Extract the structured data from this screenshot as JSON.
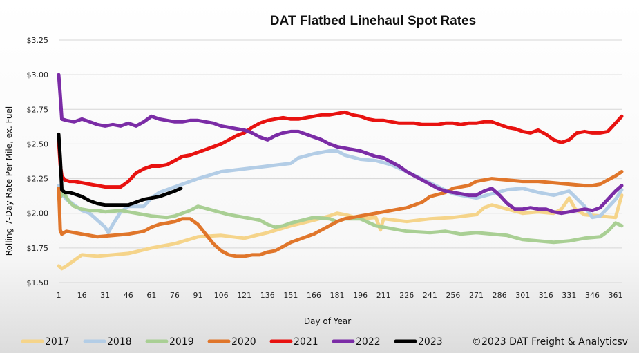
{
  "chart_data": {
    "type": "line",
    "title": "DAT Flatbed Linehaul Spot Rates",
    "xlabel": "Day of Year",
    "ylabel": "Rolling 7-Day Rate Per Mile, ex. Fuel",
    "xlim": [
      1,
      365
    ],
    "ylim": [
      1.5,
      3.25
    ],
    "x_ticks": [
      1,
      16,
      31,
      46,
      61,
      76,
      91,
      106,
      121,
      136,
      151,
      166,
      181,
      196,
      211,
      226,
      241,
      256,
      271,
      286,
      301,
      316,
      331,
      346,
      361
    ],
    "y_ticks": [
      {
        "value": 1.5,
        "label": "$1.50"
      },
      {
        "value": 1.75,
        "label": "$1.75"
      },
      {
        "value": 2.0,
        "label": "$2.00"
      },
      {
        "value": 2.25,
        "label": "$2.25"
      },
      {
        "value": 2.5,
        "label": "$2.50"
      },
      {
        "value": 2.75,
        "label": "$2.75"
      },
      {
        "value": 3.0,
        "label": "$3.00"
      },
      {
        "value": 3.25,
        "label": "$3.25"
      }
    ],
    "grid": true,
    "legend_position": "bottom",
    "annotation": "©2023 DAT Freight & Analyticsv",
    "series": [
      {
        "name": "2017",
        "color": "#f5d48a",
        "x": [
          1,
          3,
          6,
          11,
          16,
          26,
          36,
          46,
          61,
          76,
          91,
          106,
          121,
          136,
          151,
          166,
          176,
          181,
          186,
          196,
          206,
          209,
          211,
          226,
          241,
          256,
          271,
          276,
          281,
          291,
          301,
          311,
          321,
          326,
          331,
          335,
          341,
          351,
          361,
          365
        ],
        "y": [
          1.62,
          1.6,
          1.62,
          1.66,
          1.7,
          1.69,
          1.7,
          1.71,
          1.75,
          1.78,
          1.83,
          1.84,
          1.82,
          1.86,
          1.91,
          1.95,
          1.98,
          2.0,
          1.99,
          1.96,
          1.97,
          1.88,
          1.96,
          1.94,
          1.96,
          1.97,
          1.99,
          2.04,
          2.06,
          2.03,
          2.0,
          2.01,
          2.0,
          2.03,
          2.11,
          2.03,
          1.99,
          1.98,
          1.97,
          2.13
        ]
      },
      {
        "name": "2018",
        "color": "#b3cde6",
        "x": [
          1,
          3,
          6,
          11,
          16,
          21,
          26,
          31,
          33,
          36,
          41,
          46,
          56,
          61,
          66,
          76,
          91,
          106,
          121,
          136,
          151,
          156,
          166,
          176,
          181,
          186,
          196,
          206,
          216,
          226,
          241,
          256,
          271,
          281,
          291,
          301,
          311,
          321,
          331,
          341,
          346,
          351,
          361,
          365
        ],
        "y": [
          2.2,
          2.14,
          2.1,
          2.06,
          2.02,
          2.0,
          1.95,
          1.9,
          1.86,
          1.92,
          2.01,
          2.05,
          2.05,
          2.11,
          2.15,
          2.19,
          2.25,
          2.3,
          2.32,
          2.34,
          2.36,
          2.4,
          2.43,
          2.45,
          2.45,
          2.42,
          2.39,
          2.38,
          2.35,
          2.3,
          2.22,
          2.14,
          2.11,
          2.14,
          2.17,
          2.18,
          2.15,
          2.13,
          2.16,
          2.05,
          1.97,
          1.98,
          2.1,
          2.17
        ]
      },
      {
        "name": "2019",
        "color": "#a9cf94",
        "x": [
          1,
          4,
          8,
          11,
          16,
          21,
          26,
          31,
          41,
          51,
          61,
          71,
          76,
          81,
          86,
          91,
          101,
          111,
          121,
          131,
          136,
          141,
          146,
          151,
          166,
          176,
          181,
          186,
          196,
          206,
          216,
          226,
          241,
          251,
          261,
          271,
          281,
          291,
          301,
          311,
          321,
          331,
          341,
          351,
          356,
          361,
          365
        ],
        "y": [
          2.1,
          2.15,
          2.08,
          2.05,
          2.03,
          2.02,
          2.02,
          2.01,
          2.02,
          2.0,
          1.98,
          1.97,
          1.98,
          2.0,
          2.02,
          2.05,
          2.02,
          1.99,
          1.97,
          1.95,
          1.92,
          1.9,
          1.91,
          1.93,
          1.97,
          1.96,
          1.94,
          1.96,
          1.96,
          1.91,
          1.89,
          1.87,
          1.86,
          1.87,
          1.85,
          1.86,
          1.85,
          1.84,
          1.81,
          1.8,
          1.79,
          1.8,
          1.82,
          1.83,
          1.87,
          1.93,
          1.91
        ]
      },
      {
        "name": "2020",
        "color": "#e0762b",
        "x": [
          1,
          2,
          3,
          6,
          11,
          16,
          26,
          36,
          46,
          56,
          61,
          66,
          71,
          76,
          81,
          86,
          91,
          96,
          101,
          106,
          111,
          116,
          121,
          126,
          131,
          136,
          141,
          146,
          151,
          156,
          166,
          171,
          176,
          181,
          186,
          196,
          206,
          216,
          226,
          236,
          241,
          251,
          256,
          266,
          271,
          276,
          281,
          291,
          301,
          311,
          321,
          331,
          341,
          346,
          351,
          356,
          361,
          365
        ],
        "y": [
          2.18,
          1.88,
          1.85,
          1.87,
          1.86,
          1.85,
          1.83,
          1.84,
          1.85,
          1.87,
          1.9,
          1.92,
          1.93,
          1.94,
          1.96,
          1.96,
          1.92,
          1.85,
          1.78,
          1.73,
          1.7,
          1.69,
          1.69,
          1.7,
          1.7,
          1.72,
          1.73,
          1.76,
          1.79,
          1.81,
          1.85,
          1.88,
          1.91,
          1.94,
          1.96,
          1.98,
          2.0,
          2.02,
          2.04,
          2.08,
          2.12,
          2.15,
          2.18,
          2.2,
          2.23,
          2.24,
          2.25,
          2.24,
          2.23,
          2.23,
          2.22,
          2.21,
          2.2,
          2.2,
          2.21,
          2.24,
          2.27,
          2.3
        ]
      },
      {
        "name": "2021",
        "color": "#e81210",
        "x": [
          1,
          2,
          3,
          5,
          8,
          11,
          16,
          21,
          26,
          31,
          36,
          41,
          46,
          51,
          56,
          61,
          66,
          71,
          76,
          81,
          86,
          91,
          96,
          101,
          106,
          111,
          116,
          121,
          126,
          131,
          136,
          141,
          146,
          151,
          156,
          161,
          166,
          171,
          176,
          181,
          186,
          191,
          196,
          201,
          206,
          211,
          216,
          221,
          226,
          231,
          236,
          241,
          246,
          251,
          256,
          261,
          266,
          271,
          276,
          281,
          286,
          291,
          296,
          301,
          306,
          311,
          316,
          321,
          326,
          331,
          336,
          341,
          346,
          351,
          356,
          361,
          365
        ],
        "y": [
          2.52,
          2.35,
          2.27,
          2.24,
          2.23,
          2.23,
          2.22,
          2.21,
          2.2,
          2.19,
          2.19,
          2.19,
          2.23,
          2.29,
          2.32,
          2.34,
          2.34,
          2.35,
          2.38,
          2.41,
          2.42,
          2.44,
          2.46,
          2.48,
          2.5,
          2.53,
          2.56,
          2.58,
          2.62,
          2.65,
          2.67,
          2.68,
          2.69,
          2.68,
          2.68,
          2.69,
          2.7,
          2.71,
          2.71,
          2.72,
          2.73,
          2.71,
          2.7,
          2.68,
          2.67,
          2.67,
          2.66,
          2.65,
          2.65,
          2.65,
          2.64,
          2.64,
          2.64,
          2.65,
          2.65,
          2.64,
          2.65,
          2.65,
          2.66,
          2.66,
          2.64,
          2.62,
          2.61,
          2.59,
          2.58,
          2.6,
          2.57,
          2.53,
          2.51,
          2.53,
          2.58,
          2.59,
          2.58,
          2.58,
          2.59,
          2.65,
          2.7
        ]
      },
      {
        "name": "2022",
        "color": "#7b2ca6",
        "x": [
          1,
          2,
          3,
          6,
          11,
          16,
          21,
          26,
          31,
          36,
          41,
          46,
          51,
          56,
          61,
          66,
          71,
          76,
          81,
          86,
          91,
          96,
          101,
          106,
          111,
          116,
          121,
          126,
          131,
          136,
          141,
          146,
          151,
          156,
          161,
          166,
          171,
          176,
          181,
          186,
          191,
          196,
          201,
          206,
          211,
          216,
          221,
          226,
          231,
          236,
          241,
          246,
          251,
          256,
          261,
          266,
          271,
          276,
          281,
          286,
          291,
          296,
          301,
          306,
          311,
          316,
          321,
          326,
          331,
          336,
          341,
          346,
          351,
          356,
          361,
          365
        ],
        "y": [
          3.0,
          2.85,
          2.68,
          2.67,
          2.66,
          2.68,
          2.66,
          2.64,
          2.63,
          2.64,
          2.63,
          2.65,
          2.63,
          2.66,
          2.7,
          2.68,
          2.67,
          2.66,
          2.66,
          2.67,
          2.67,
          2.66,
          2.65,
          2.63,
          2.62,
          2.61,
          2.6,
          2.58,
          2.55,
          2.53,
          2.56,
          2.58,
          2.59,
          2.59,
          2.57,
          2.55,
          2.53,
          2.5,
          2.48,
          2.47,
          2.46,
          2.45,
          2.43,
          2.41,
          2.4,
          2.37,
          2.34,
          2.3,
          2.27,
          2.24,
          2.21,
          2.18,
          2.16,
          2.15,
          2.14,
          2.13,
          2.13,
          2.16,
          2.18,
          2.13,
          2.07,
          2.03,
          2.03,
          2.04,
          2.03,
          2.03,
          2.01,
          2.0,
          2.01,
          2.02,
          2.03,
          2.02,
          2.04,
          2.1,
          2.16,
          2.2
        ]
      },
      {
        "name": "2023",
        "color": "#000000",
        "x": [
          1,
          2,
          3,
          5,
          8,
          11,
          16,
          21,
          26,
          31,
          36,
          41,
          46,
          51,
          56,
          61,
          66,
          71,
          76,
          80
        ],
        "y": [
          2.57,
          2.4,
          2.17,
          2.15,
          2.15,
          2.14,
          2.12,
          2.09,
          2.07,
          2.06,
          2.06,
          2.06,
          2.06,
          2.08,
          2.1,
          2.11,
          2.12,
          2.14,
          2.16,
          2.18
        ]
      }
    ]
  }
}
